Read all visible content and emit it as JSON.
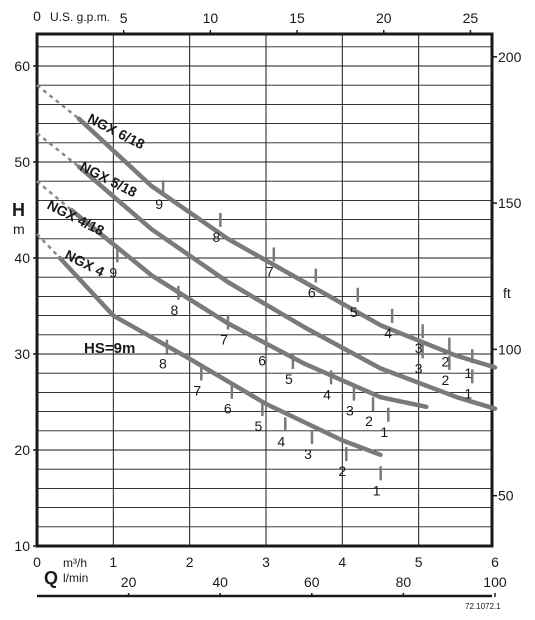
{
  "chart_data": {
    "type": "line",
    "units": {
      "top": "U.S. g.p.m.",
      "left": "m",
      "left_symbol": "H",
      "right": "ft",
      "bottom_m3h": "m³/h",
      "bottom_lmin": "l/min",
      "bottom_symbol": "Q"
    },
    "x_m3h": {
      "range": [
        0,
        6
      ],
      "ticks": [
        0,
        1,
        2,
        3,
        4,
        5,
        6
      ],
      "labels": [
        "0",
        "1",
        "2",
        "3",
        "4",
        "5",
        "6"
      ]
    },
    "x_lmin": {
      "ticks": [
        20,
        40,
        60,
        80,
        100
      ],
      "labels": [
        "20",
        "40",
        "60",
        "80",
        "100"
      ]
    },
    "x_gpm": {
      "zero_label": "0",
      "ticks": [
        5,
        10,
        15,
        20,
        25
      ],
      "labels": [
        "5",
        "10",
        "15",
        "20",
        "25"
      ]
    },
    "y_m": {
      "range": [
        10,
        62
      ],
      "ticks": [
        10,
        20,
        30,
        40,
        50,
        60
      ],
      "labels": [
        "10",
        "20",
        "30",
        "40",
        "50",
        "60"
      ]
    },
    "y_ft": {
      "ticks": [
        50,
        100,
        150,
        200
      ],
      "labels": [
        "50",
        "100",
        "150",
        "200"
      ]
    },
    "grid": true,
    "hs_label": "HS=9m",
    "reference": "72.1072.1",
    "series": [
      {
        "name": "NGX 6/18",
        "x": [
          0.55,
          1.5,
          2.5,
          3.5,
          4.5,
          5.5,
          6.0
        ],
        "y": [
          54.5,
          47.5,
          42.0,
          37.5,
          33.0,
          29.8,
          28.6
        ],
        "stages": [
          {
            "label": "9",
            "x": 1.6,
            "y": 45.6
          },
          {
            "label": "8",
            "x": 2.35,
            "y": 42.2
          },
          {
            "label": "7",
            "x": 3.05,
            "y": 38.6
          },
          {
            "label": "6",
            "x": 3.6,
            "y": 36.4
          },
          {
            "label": "5",
            "x": 4.15,
            "y": 34.4
          },
          {
            "label": "4",
            "x": 4.6,
            "y": 32.2
          },
          {
            "label": "3",
            "x": 5.0,
            "y": 30.6
          },
          {
            "label": "2",
            "x": 5.35,
            "y": 29.2
          },
          {
            "label": "1",
            "x": 5.65,
            "y": 28.0
          }
        ]
      },
      {
        "name": "NGX 5/18",
        "x": [
          0.55,
          1.5,
          2.5,
          3.5,
          4.5,
          5.5,
          6.0
        ],
        "y": [
          49.5,
          43.0,
          37.5,
          32.8,
          28.5,
          25.5,
          24.3
        ]
      },
      {
        "name": "NGX 4/18",
        "x": [
          0.45,
          1.5,
          2.5,
          3.5,
          4.5,
          5.1
        ],
        "y": [
          45.0,
          38.2,
          33.2,
          29.0,
          25.5,
          24.5
        ]
      },
      {
        "name": "NGX 4",
        "x": [
          0.3,
          1.0,
          2.0,
          3.0,
          4.0,
          4.5
        ],
        "y": [
          40.0,
          34.0,
          29.5,
          24.8,
          21.0,
          19.5
        ],
        "stages": [
          {
            "label": "8",
            "x": 1.65,
            "y": 29.0
          },
          {
            "label": "7",
            "x": 2.1,
            "y": 26.2
          },
          {
            "label": "6",
            "x": 2.5,
            "y": 24.3
          },
          {
            "label": "5",
            "x": 2.9,
            "y": 22.5
          },
          {
            "label": "4",
            "x": 3.2,
            "y": 20.9
          },
          {
            "label": "3",
            "x": 3.55,
            "y": 19.6
          },
          {
            "label": "2",
            "x": 4.0,
            "y": 17.8
          },
          {
            "label": "1",
            "x": 4.45,
            "y": 15.8
          }
        ]
      }
    ],
    "extra_stage_labels": [
      {
        "label": "9",
        "x": 1.0,
        "y": 38.5
      },
      {
        "label": "8",
        "x": 1.8,
        "y": 34.6
      },
      {
        "label": "7",
        "x": 2.45,
        "y": 31.5
      },
      {
        "label": "6",
        "x": 2.95,
        "y": 29.3
      },
      {
        "label": "5",
        "x": 3.3,
        "y": 27.4
      },
      {
        "label": "4",
        "x": 3.8,
        "y": 25.8
      },
      {
        "label": "3",
        "x": 4.1,
        "y": 24.1
      },
      {
        "label": "2",
        "x": 4.35,
        "y": 23.0
      },
      {
        "label": "1",
        "x": 4.55,
        "y": 21.9
      },
      {
        "label": "3",
        "x": 5.0,
        "y": 28.5
      },
      {
        "label": "2",
        "x": 5.35,
        "y": 27.3
      },
      {
        "label": "1",
        "x": 5.65,
        "y": 25.9
      }
    ]
  }
}
